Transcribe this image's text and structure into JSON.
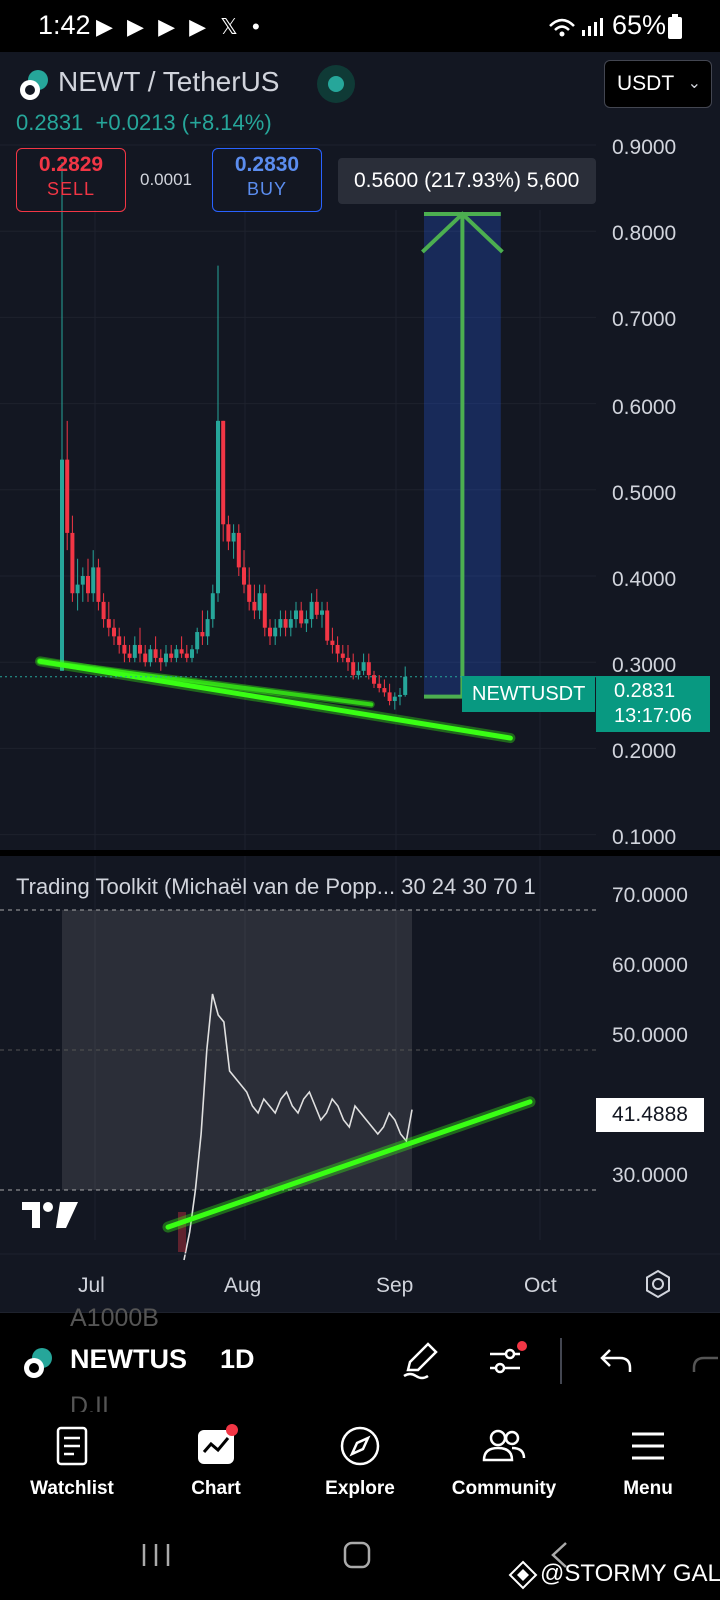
{
  "status_bar": {
    "time": "1:42",
    "notif_icons": "▶ ▶ ▶ ▶ 𝕏 •",
    "battery": "65%"
  },
  "header": {
    "symbol_title": "NEWT / TetherUS",
    "last_price": "0.2831",
    "change": "+0.0213 (+8.14%)",
    "currency": "USDT"
  },
  "trade": {
    "sell_price": "0.2829",
    "sell_label": "SELL",
    "spread": "0.0001",
    "buy_price": "0.2830",
    "buy_label": "BUY"
  },
  "measure_tool": {
    "label": "0.5600 (217.93%) 5,600"
  },
  "price_tags": {
    "symbol": "NEWTUSDT",
    "price": "0.2831",
    "countdown": "13:17:06"
  },
  "price_axis": [
    "0.9000",
    "0.8000",
    "0.7000",
    "0.6000",
    "0.5000",
    "0.4000",
    "0.3000",
    "0.2000",
    "0.1000"
  ],
  "indicator": {
    "title": "Trading Toolkit (Michaël van de Popp... 30 24 30 70 1",
    "axis": [
      "70.0000",
      "60.0000",
      "50.0000",
      "30.0000"
    ],
    "current_value": "41.4888"
  },
  "time_axis": [
    "Jul",
    "Aug",
    "Sep",
    "Oct"
  ],
  "toolbar": {
    "symbol": "NEWTUS",
    "interval": "1D",
    "ghost_above": "A1000B",
    "ghost_below": "D.II"
  },
  "nav": {
    "items": [
      {
        "label": "Watchlist",
        "icon": "document-icon"
      },
      {
        "label": "Chart",
        "icon": "chart-icon"
      },
      {
        "label": "Explore",
        "icon": "compass-icon"
      },
      {
        "label": "Community",
        "icon": "people-icon"
      },
      {
        "label": "Menu",
        "icon": "hamburger-icon"
      }
    ]
  },
  "watermark": "@STORMY GAL",
  "colors": {
    "up": "#26a69a",
    "down": "#f23645",
    "trendline": "#39ff14",
    "measure": "#4caf50",
    "background": "#131722"
  },
  "chart_data": {
    "type": "candlestick",
    "series_price": [
      {
        "d": 0,
        "o": 0.29,
        "h": 0.88,
        "l": 0.29,
        "c": 0.535
      },
      {
        "d": 1,
        "o": 0.535,
        "h": 0.58,
        "l": 0.43,
        "c": 0.45
      },
      {
        "d": 2,
        "o": 0.45,
        "h": 0.47,
        "l": 0.37,
        "c": 0.38
      },
      {
        "d": 3,
        "o": 0.38,
        "h": 0.42,
        "l": 0.36,
        "c": 0.39
      },
      {
        "d": 4,
        "o": 0.39,
        "h": 0.41,
        "l": 0.37,
        "c": 0.4
      },
      {
        "d": 5,
        "o": 0.4,
        "h": 0.42,
        "l": 0.37,
        "c": 0.38
      },
      {
        "d": 6,
        "o": 0.38,
        "h": 0.43,
        "l": 0.37,
        "c": 0.41
      },
      {
        "d": 7,
        "o": 0.41,
        "h": 0.42,
        "l": 0.36,
        "c": 0.37
      },
      {
        "d": 8,
        "o": 0.37,
        "h": 0.38,
        "l": 0.34,
        "c": 0.35
      },
      {
        "d": 9,
        "o": 0.35,
        "h": 0.37,
        "l": 0.33,
        "c": 0.34
      },
      {
        "d": 10,
        "o": 0.34,
        "h": 0.35,
        "l": 0.32,
        "c": 0.33
      },
      {
        "d": 11,
        "o": 0.33,
        "h": 0.34,
        "l": 0.31,
        "c": 0.32
      },
      {
        "d": 12,
        "o": 0.32,
        "h": 0.33,
        "l": 0.3,
        "c": 0.31
      },
      {
        "d": 13,
        "o": 0.31,
        "h": 0.32,
        "l": 0.3,
        "c": 0.305
      },
      {
        "d": 14,
        "o": 0.305,
        "h": 0.33,
        "l": 0.3,
        "c": 0.32
      },
      {
        "d": 15,
        "o": 0.32,
        "h": 0.34,
        "l": 0.3,
        "c": 0.31
      },
      {
        "d": 16,
        "o": 0.31,
        "h": 0.32,
        "l": 0.295,
        "c": 0.3
      },
      {
        "d": 17,
        "o": 0.3,
        "h": 0.32,
        "l": 0.295,
        "c": 0.315
      },
      {
        "d": 18,
        "o": 0.315,
        "h": 0.33,
        "l": 0.3,
        "c": 0.305
      },
      {
        "d": 19,
        "o": 0.305,
        "h": 0.315,
        "l": 0.29,
        "c": 0.3
      },
      {
        "d": 20,
        "o": 0.3,
        "h": 0.32,
        "l": 0.295,
        "c": 0.31
      },
      {
        "d": 21,
        "o": 0.31,
        "h": 0.32,
        "l": 0.3,
        "c": 0.305
      },
      {
        "d": 22,
        "o": 0.305,
        "h": 0.32,
        "l": 0.3,
        "c": 0.315
      },
      {
        "d": 23,
        "o": 0.315,
        "h": 0.33,
        "l": 0.305,
        "c": 0.31
      },
      {
        "d": 24,
        "o": 0.31,
        "h": 0.32,
        "l": 0.3,
        "c": 0.305
      },
      {
        "d": 25,
        "o": 0.305,
        "h": 0.32,
        "l": 0.3,
        "c": 0.315
      },
      {
        "d": 26,
        "o": 0.315,
        "h": 0.34,
        "l": 0.31,
        "c": 0.335
      },
      {
        "d": 27,
        "o": 0.335,
        "h": 0.36,
        "l": 0.32,
        "c": 0.33
      },
      {
        "d": 28,
        "o": 0.33,
        "h": 0.36,
        "l": 0.32,
        "c": 0.35
      },
      {
        "d": 29,
        "o": 0.35,
        "h": 0.39,
        "l": 0.34,
        "c": 0.38
      },
      {
        "d": 30,
        "o": 0.38,
        "h": 0.76,
        "l": 0.37,
        "c": 0.58
      },
      {
        "d": 31,
        "o": 0.58,
        "h": 0.58,
        "l": 0.44,
        "c": 0.46
      },
      {
        "d": 32,
        "o": 0.46,
        "h": 0.47,
        "l": 0.43,
        "c": 0.44
      },
      {
        "d": 33,
        "o": 0.44,
        "h": 0.46,
        "l": 0.42,
        "c": 0.45
      },
      {
        "d": 34,
        "o": 0.45,
        "h": 0.46,
        "l": 0.4,
        "c": 0.41
      },
      {
        "d": 35,
        "o": 0.41,
        "h": 0.43,
        "l": 0.38,
        "c": 0.39
      },
      {
        "d": 36,
        "o": 0.39,
        "h": 0.41,
        "l": 0.36,
        "c": 0.37
      },
      {
        "d": 37,
        "o": 0.37,
        "h": 0.39,
        "l": 0.35,
        "c": 0.36
      },
      {
        "d": 38,
        "o": 0.36,
        "h": 0.39,
        "l": 0.35,
        "c": 0.38
      },
      {
        "d": 39,
        "o": 0.38,
        "h": 0.39,
        "l": 0.33,
        "c": 0.34
      },
      {
        "d": 40,
        "o": 0.34,
        "h": 0.35,
        "l": 0.32,
        "c": 0.33
      },
      {
        "d": 41,
        "o": 0.33,
        "h": 0.35,
        "l": 0.32,
        "c": 0.34
      },
      {
        "d": 42,
        "o": 0.34,
        "h": 0.36,
        "l": 0.33,
        "c": 0.35
      },
      {
        "d": 43,
        "o": 0.35,
        "h": 0.36,
        "l": 0.33,
        "c": 0.34
      },
      {
        "d": 44,
        "o": 0.34,
        "h": 0.36,
        "l": 0.33,
        "c": 0.35
      },
      {
        "d": 45,
        "o": 0.35,
        "h": 0.37,
        "l": 0.34,
        "c": 0.36
      },
      {
        "d": 46,
        "o": 0.36,
        "h": 0.37,
        "l": 0.34,
        "c": 0.345
      },
      {
        "d": 47,
        "o": 0.345,
        "h": 0.36,
        "l": 0.335,
        "c": 0.35
      },
      {
        "d": 48,
        "o": 0.35,
        "h": 0.38,
        "l": 0.34,
        "c": 0.37
      },
      {
        "d": 49,
        "o": 0.37,
        "h": 0.385,
        "l": 0.35,
        "c": 0.355
      },
      {
        "d": 50,
        "o": 0.355,
        "h": 0.37,
        "l": 0.34,
        "c": 0.36
      },
      {
        "d": 51,
        "o": 0.36,
        "h": 0.37,
        "l": 0.32,
        "c": 0.325
      },
      {
        "d": 52,
        "o": 0.325,
        "h": 0.34,
        "l": 0.31,
        "c": 0.32
      },
      {
        "d": 53,
        "o": 0.32,
        "h": 0.33,
        "l": 0.3,
        "c": 0.31
      },
      {
        "d": 54,
        "o": 0.31,
        "h": 0.32,
        "l": 0.3,
        "c": 0.305
      },
      {
        "d": 55,
        "o": 0.305,
        "h": 0.32,
        "l": 0.29,
        "c": 0.3
      },
      {
        "d": 56,
        "o": 0.3,
        "h": 0.31,
        "l": 0.28,
        "c": 0.285
      },
      {
        "d": 57,
        "o": 0.285,
        "h": 0.3,
        "l": 0.28,
        "c": 0.29
      },
      {
        "d": 58,
        "o": 0.29,
        "h": 0.31,
        "l": 0.285,
        "c": 0.3
      },
      {
        "d": 59,
        "o": 0.3,
        "h": 0.31,
        "l": 0.28,
        "c": 0.285
      },
      {
        "d": 60,
        "o": 0.285,
        "h": 0.29,
        "l": 0.27,
        "c": 0.275
      },
      {
        "d": 61,
        "o": 0.275,
        "h": 0.285,
        "l": 0.265,
        "c": 0.27
      },
      {
        "d": 62,
        "o": 0.27,
        "h": 0.28,
        "l": 0.26,
        "c": 0.265
      },
      {
        "d": 63,
        "o": 0.265,
        "h": 0.275,
        "l": 0.25,
        "c": 0.255
      },
      {
        "d": 64,
        "o": 0.255,
        "h": 0.265,
        "l": 0.245,
        "c": 0.26
      },
      {
        "d": 65,
        "o": 0.26,
        "h": 0.27,
        "l": 0.25,
        "c": 0.262
      },
      {
        "d": 66,
        "o": 0.262,
        "h": 0.295,
        "l": 0.26,
        "c": 0.2831
      }
    ],
    "series_rsi": [
      20,
      24,
      30,
      38,
      50,
      58,
      55,
      54,
      47,
      46,
      45,
      44,
      42,
      41,
      43,
      42,
      41,
      43,
      44,
      42,
      41,
      43,
      44,
      42,
      40,
      41,
      43,
      42,
      40,
      39,
      42,
      41,
      40,
      39,
      38,
      39,
      41,
      40,
      38,
      37,
      41.4888
    ],
    "ylim_price": [
      0.1,
      0.9
    ],
    "ylim_rsi": [
      25,
      70
    ],
    "trendlines": [
      {
        "x1": 0,
        "y1": 0.301,
        "x2": 98,
        "y2": 0.212
      },
      {
        "x1": 0,
        "y1": 0.301,
        "x2": 69,
        "y2": 0.251
      }
    ],
    "rsi_trendline": {
      "x1": 12,
      "y1": 24.7,
      "x2": 100,
      "y2": 42.6
    },
    "measure": {
      "start": 0.26,
      "end": 0.82,
      "x_from": 80,
      "x_to": 96
    }
  }
}
